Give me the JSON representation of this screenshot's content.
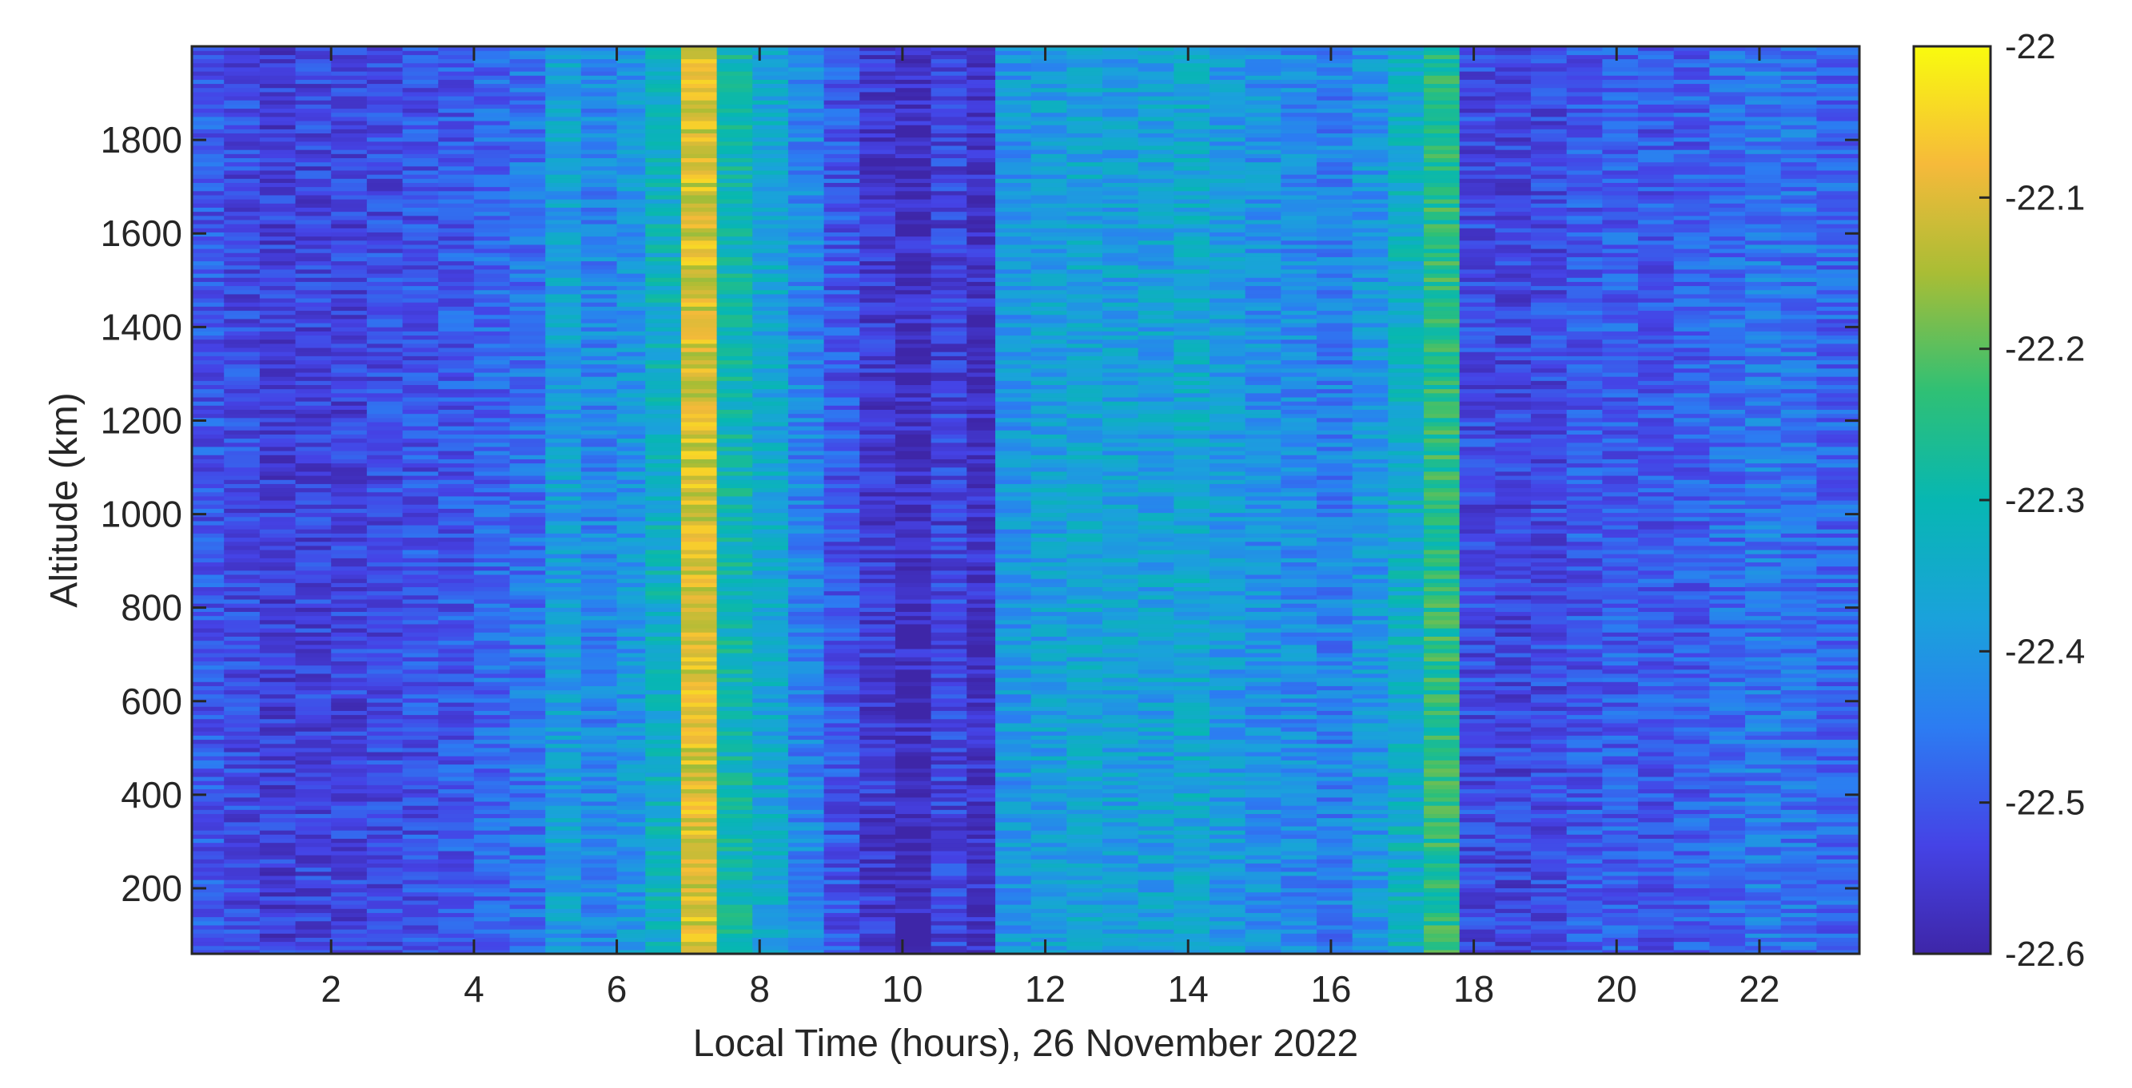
{
  "chart_data": {
    "type": "heatmap",
    "title": "",
    "xlabel": "Local Time (hours), 26 November 2022",
    "ylabel": "Altitude (km)",
    "xlim": [
      0.05,
      23.4
    ],
    "ylim": [
      60,
      2000
    ],
    "x_ticks": [
      2,
      4,
      6,
      8,
      10,
      12,
      14,
      16,
      18,
      20,
      22
    ],
    "y_ticks": [
      200,
      400,
      600,
      800,
      1000,
      1200,
      1400,
      1600,
      1800
    ],
    "colorbar": {
      "colormap": "parula",
      "clim": [
        -22.6,
        -22.0
      ],
      "ticks": [
        "-22",
        "-22.1",
        "-22.2",
        "-22.3",
        "-22.4",
        "-22.5",
        "-22.6"
      ],
      "tick_values": [
        -22.0,
        -22.1,
        -22.2,
        -22.3,
        -22.4,
        -22.5,
        -22.6
      ]
    },
    "column_times": [
      0.05,
      0.5,
      1.0,
      1.5,
      2.0,
      2.5,
      3.0,
      3.5,
      4.0,
      4.5,
      5.0,
      5.5,
      6.0,
      6.4,
      6.9,
      7.4,
      7.9,
      8.4,
      8.9,
      9.4,
      9.9,
      10.4,
      10.9,
      11.3,
      11.8,
      12.3,
      12.8,
      13.3,
      13.8,
      14.3,
      14.8,
      15.3,
      15.8,
      16.3,
      16.8,
      17.3,
      17.8,
      18.3,
      18.8,
      19.3,
      19.8,
      20.3,
      20.8,
      21.3,
      21.8,
      22.3,
      22.8,
      23.4
    ],
    "column_mean_values": [
      -22.5,
      -22.52,
      -22.54,
      -22.53,
      -22.53,
      -22.52,
      -22.51,
      -22.5,
      -22.48,
      -22.46,
      -22.38,
      -22.43,
      -22.4,
      -22.33,
      -22.1,
      -22.3,
      -22.36,
      -22.43,
      -22.5,
      -22.55,
      -22.58,
      -22.53,
      -22.57,
      -22.4,
      -22.38,
      -22.37,
      -22.38,
      -22.38,
      -22.36,
      -22.39,
      -22.41,
      -22.42,
      -22.44,
      -22.4,
      -22.34,
      -22.25,
      -22.52,
      -22.53,
      -22.52,
      -22.5,
      -22.49,
      -22.5,
      -22.49,
      -22.47,
      -22.45,
      -22.46,
      -22.48
    ]
  }
}
